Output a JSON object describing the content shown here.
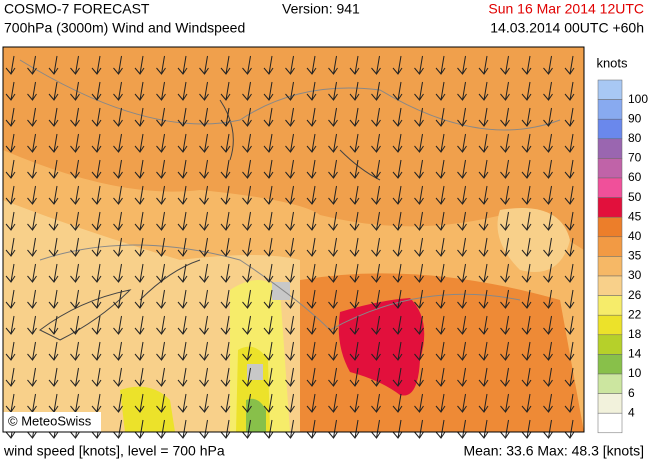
{
  "header": {
    "title": "COSMO-7 FORECAST",
    "subtitle": "700hPa (3000m) Wind and Windspeed",
    "version": "Version: 941",
    "valid": "Sun 16 Mar 2014 12UTC",
    "run": "14.03.2014 00UTC +60h"
  },
  "legend": {
    "title": "knots",
    "items": [
      {
        "label": "100",
        "color": "#a8c8f4"
      },
      {
        "label": "90",
        "color": "#88aaf0"
      },
      {
        "label": "80",
        "color": "#6a88ec"
      },
      {
        "label": "70",
        "color": "#9a66b0"
      },
      {
        "label": "60",
        "color": "#c063a8"
      },
      {
        "label": "50",
        "color": "#f0509a"
      },
      {
        "label": "45",
        "color": "#e2103c"
      },
      {
        "label": "40",
        "color": "#ec7e2a"
      },
      {
        "label": "35",
        "color": "#f29a44"
      },
      {
        "label": "30",
        "color": "#f6b866"
      },
      {
        "label": "26",
        "color": "#f8d08a"
      },
      {
        "label": "22",
        "color": "#f6ec6a"
      },
      {
        "label": "18",
        "color": "#ece22a"
      },
      {
        "label": "14",
        "color": "#b6d02a"
      },
      {
        "label": "10",
        "color": "#88c04a"
      },
      {
        "label": "6",
        "color": "#cce6a0"
      },
      {
        "label": "4",
        "color": "#f2f2dc"
      },
      {
        "label": "",
        "color": "#ffffff"
      }
    ]
  },
  "copyright": "© MeteoSwiss",
  "footer": {
    "left": "wind speed [knots], level = 700 hPa",
    "right": "Mean:  33.6 Max:  48.3 [knots]"
  }
}
